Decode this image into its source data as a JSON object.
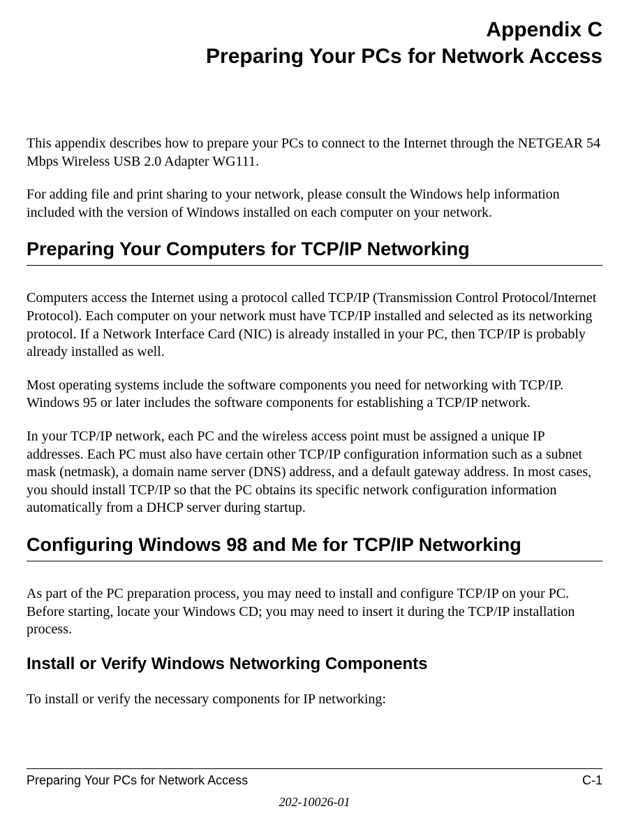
{
  "appendix_label": "Appendix C",
  "appendix_title": "Preparing Your PCs for Network Access",
  "intro_p1": "This appendix describes how to prepare your PCs to connect to the Internet through the NETGEAR 54 Mbps Wireless USB 2.0 Adapter WG111.",
  "intro_p2": "For adding file and print sharing to your network, please consult the Windows help information included with the version of Windows installed on each computer on your network.",
  "section1_heading": "Preparing Your Computers for TCP/IP Networking",
  "section1_p1": "Computers access the Internet using a protocol called TCP/IP (Transmission Control Protocol/Internet Protocol). Each computer on your network must have TCP/IP installed and selected as its networking protocol. If a Network Interface Card (NIC) is already installed in your PC, then TCP/IP is probably already installed as well.",
  "section1_p2": "Most operating systems include the software components you need for networking with TCP/IP. Windows 95 or later includes the software components for establishing a TCP/IP network.",
  "section1_p3": "In your TCP/IP network, each PC and the wireless access point must be assigned a unique IP addresses. Each PC must also have certain other TCP/IP configuration information such as a subnet mask (netmask), a domain name server (DNS) address, and a default gateway address. In most cases, you should install TCP/IP so that the PC obtains its specific network configuration information automatically from a DHCP server during startup.",
  "section2_heading": "Configuring Windows 98 and Me for TCP/IP Networking",
  "section2_p1": "As part of the PC preparation process, you may need to install and configure TCP/IP on your PC. Before starting, locate your Windows CD; you may need to insert it during the TCP/IP installation process.",
  "subsection_heading": "Install or Verify Windows Networking Components",
  "subsection_p1": "To install or verify the necessary components for IP networking:",
  "footer": {
    "left": "Preparing Your PCs for Network Access",
    "right": "C-1",
    "doc_id": "202-10026-01"
  },
  "styles": {
    "page_bg": "#ffffff",
    "text_color": "#000000",
    "title_fontsize": 30,
    "h1_fontsize": 27,
    "h2_fontsize": 24,
    "body_fontsize": 20,
    "footer_fontsize": 18,
    "rule_color": "#000000"
  }
}
